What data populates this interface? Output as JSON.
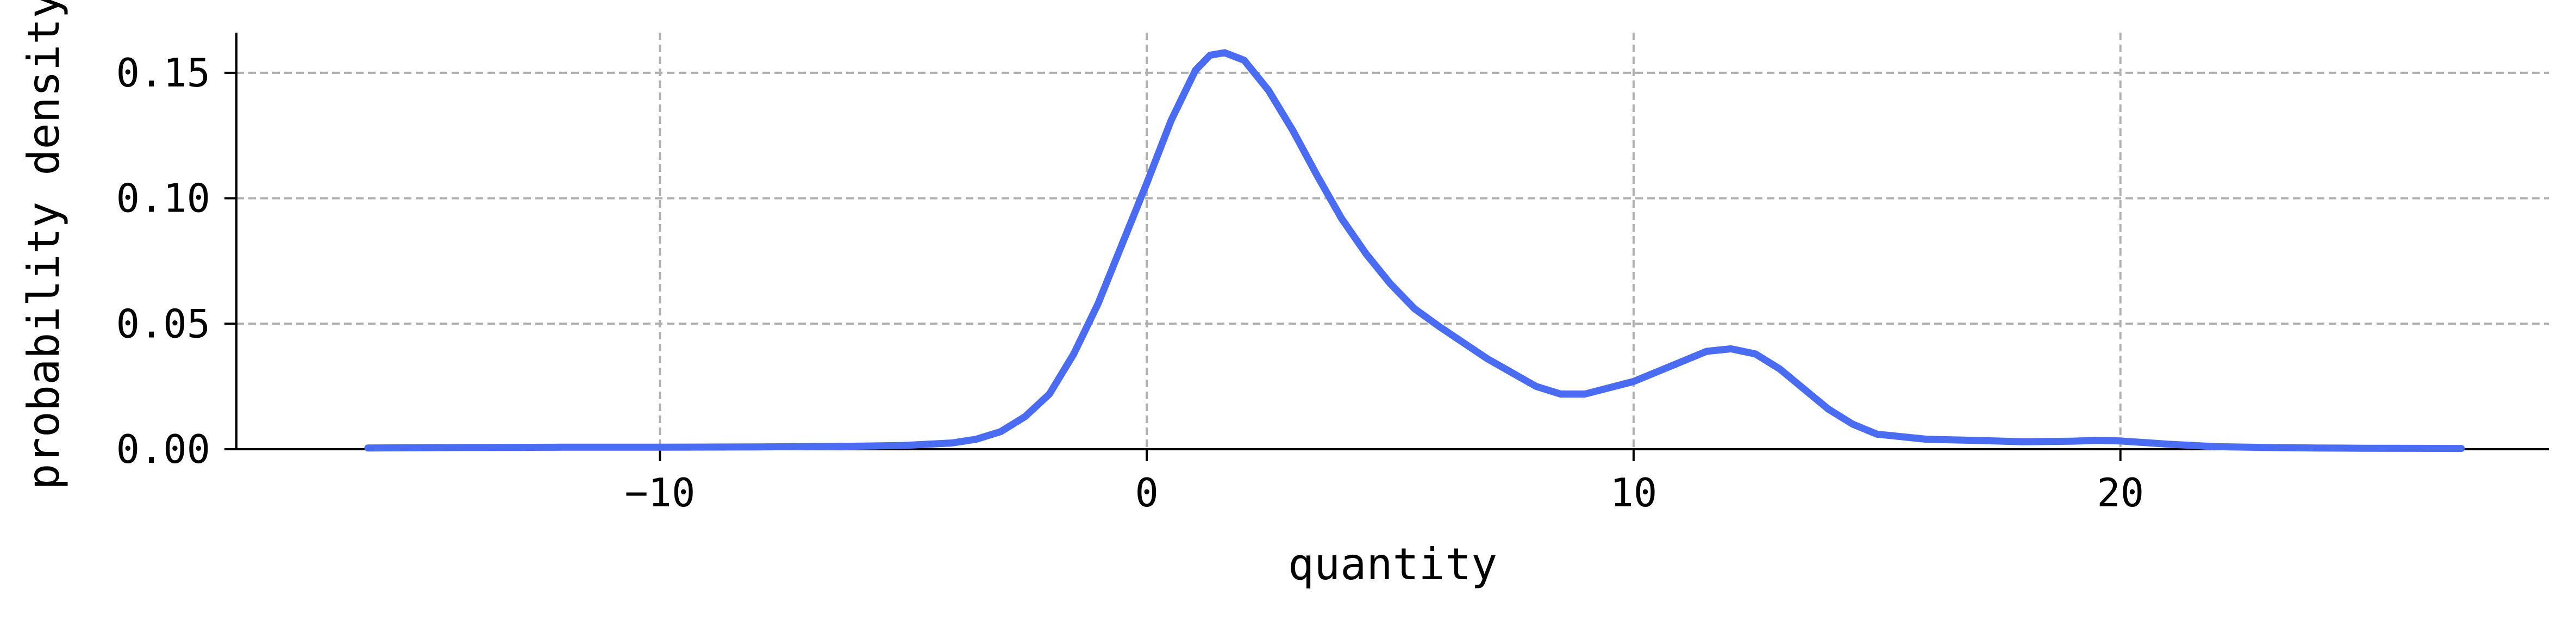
{
  "chart_data": {
    "type": "line",
    "title": "",
    "xlabel": "quantity",
    "ylabel": "probability density",
    "xlim": [
      -18.7,
      28.8
    ],
    "ylim": [
      0,
      0.166
    ],
    "xticks": [
      -10,
      0,
      10,
      20
    ],
    "xtick_labels": [
      "−10",
      "0",
      "10",
      "20"
    ],
    "yticks": [
      0.0,
      0.05,
      0.1,
      0.15
    ],
    "ytick_labels": [
      "0.00",
      "0.05",
      "0.10",
      "0.15"
    ],
    "grid": true,
    "legend": "none",
    "series": [
      {
        "color": "#4a6cf2",
        "x": [
          -16,
          -14,
          -12,
          -10,
          -8,
          -6,
          -5,
          -4,
          -3.5,
          -3,
          -2.5,
          -2,
          -1.5,
          -1,
          -0.5,
          0,
          0.5,
          1,
          1.3,
          1.6,
          2,
          2.5,
          3,
          3.5,
          4,
          4.5,
          5,
          5.5,
          6,
          7,
          8,
          8.5,
          9,
          10,
          10.5,
          11,
          11.5,
          12,
          12.5,
          13,
          13.5,
          14,
          14.5,
          15,
          16,
          17,
          18,
          19,
          19.5,
          20,
          21,
          22,
          23,
          24,
          25,
          27
        ],
        "y": [
          0.0005,
          0.0007,
          0.0008,
          0.0008,
          0.0009,
          0.0012,
          0.0015,
          0.0025,
          0.004,
          0.007,
          0.013,
          0.022,
          0.038,
          0.058,
          0.082,
          0.106,
          0.131,
          0.151,
          0.157,
          0.158,
          0.155,
          0.143,
          0.127,
          0.109,
          0.092,
          0.078,
          0.066,
          0.056,
          0.049,
          0.036,
          0.025,
          0.022,
          0.022,
          0.027,
          0.031,
          0.035,
          0.039,
          0.04,
          0.038,
          0.032,
          0.024,
          0.016,
          0.01,
          0.006,
          0.004,
          0.0035,
          0.003,
          0.0032,
          0.0035,
          0.0033,
          0.002,
          0.001,
          0.0007,
          0.0005,
          0.0004,
          0.0003
        ]
      }
    ]
  }
}
